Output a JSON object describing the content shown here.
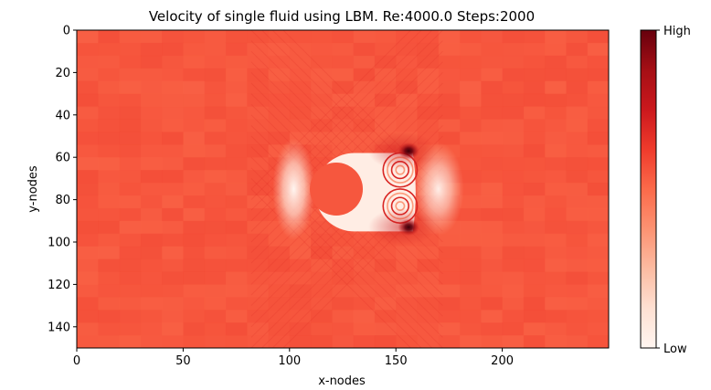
{
  "chart_data": {
    "type": "heatmap",
    "title": "Velocity of single fluid using LBM. Re:4000.0 Steps:2000",
    "xlabel": "x-nodes",
    "ylabel": "y-nodes",
    "xlim": [
      0,
      250
    ],
    "ylim": [
      150,
      0
    ],
    "x_ticks": [
      0,
      50,
      100,
      150,
      200
    ],
    "y_ticks": [
      0,
      20,
      40,
      60,
      80,
      100,
      120,
      140
    ],
    "colormap": "Reds",
    "colorbar": {
      "high_label": "High",
      "low_label": "Low"
    },
    "grid": false,
    "background_level": 0.55,
    "obstacle": {
      "shape": "circle",
      "center_x": 122,
      "center_y": 75,
      "radius": 12.5,
      "level": 0.55
    },
    "features": [
      {
        "kind": "low-velocity wake region",
        "x_range": [
          112,
          158
        ],
        "y_range": [
          58,
          95
        ],
        "level": 0.05
      },
      {
        "kind": "low-velocity stagnation region",
        "center_x": 102,
        "center_y": 75,
        "level": 0.1
      },
      {
        "kind": "downstream low-velocity region",
        "center_x": 170,
        "center_y": 75,
        "level": 0.15
      },
      {
        "kind": "high-velocity shear peak",
        "center_x": 156,
        "center_y": 57,
        "level": 1.0
      },
      {
        "kind": "high-velocity shear peak",
        "center_x": 156,
        "center_y": 93,
        "level": 1.0
      },
      {
        "kind": "vortex",
        "center_x": 152,
        "center_y": 66,
        "level": 0.7
      },
      {
        "kind": "vortex",
        "center_x": 152,
        "center_y": 83,
        "level": 0.7
      }
    ]
  }
}
